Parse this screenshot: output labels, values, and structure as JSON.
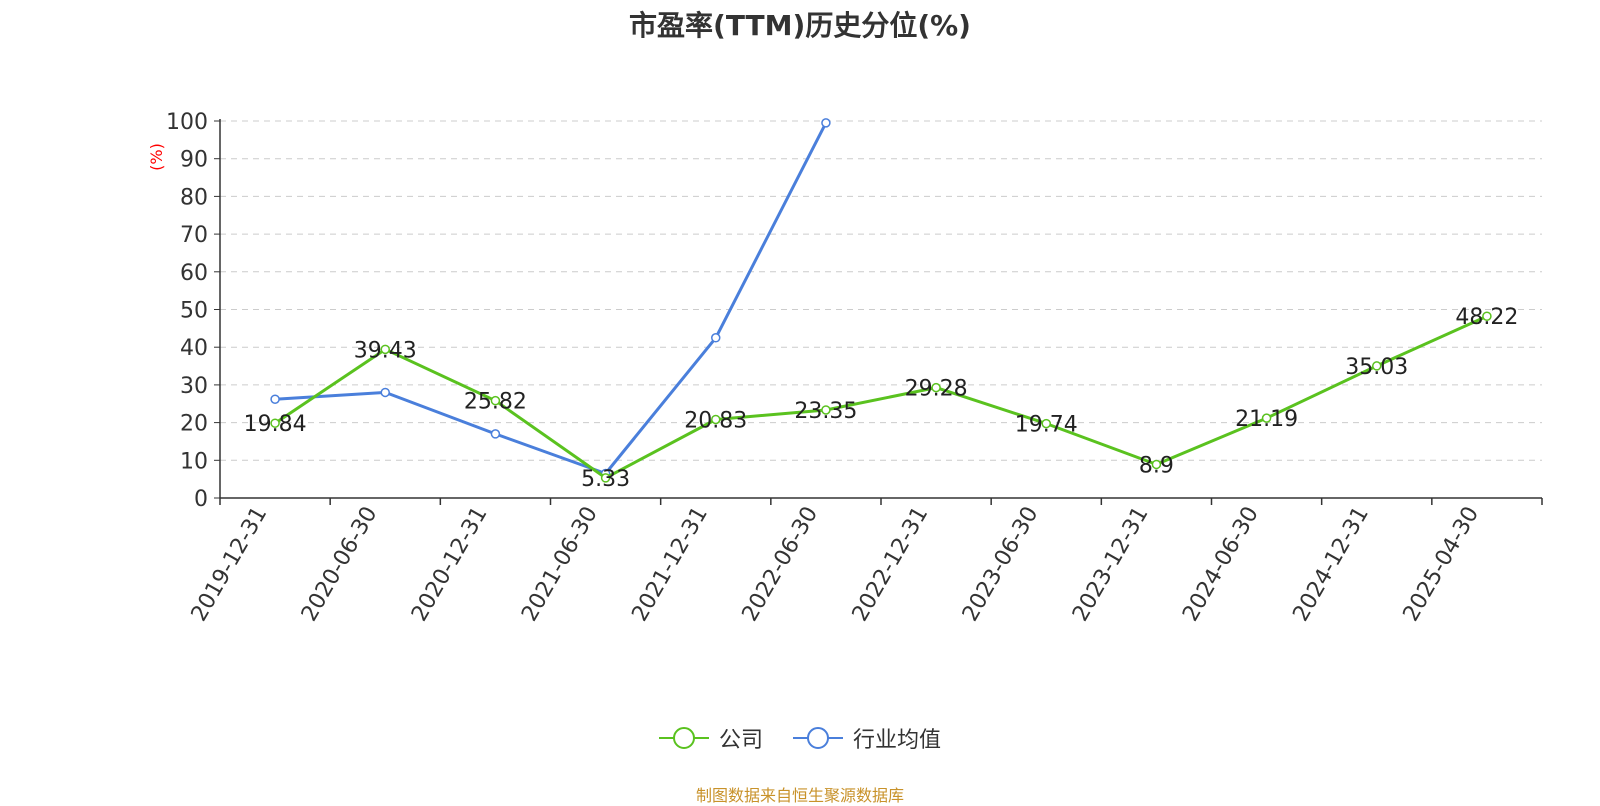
{
  "chart_data": {
    "type": "line",
    "title": "市盈率(TTM)历史分位(%)",
    "ylabel": "(%)",
    "xlabel": "",
    "ylim": [
      0,
      100
    ],
    "yticks": [
      0,
      10,
      20,
      30,
      40,
      50,
      60,
      70,
      80,
      90,
      100
    ],
    "categories": [
      "2019-12-31",
      "2020-06-30",
      "2020-12-31",
      "2021-06-30",
      "2021-12-31",
      "2022-06-30",
      "2022-12-31",
      "2023-06-30",
      "2023-12-31",
      "2024-06-30",
      "2024-12-31",
      "2025-04-30"
    ],
    "grid": true,
    "legend_position": "bottom",
    "series": [
      {
        "name": "公司",
        "color": "#5ac21f",
        "values": [
          19.84,
          39.43,
          25.82,
          5.33,
          20.83,
          23.35,
          29.28,
          19.74,
          8.9,
          21.19,
          35.03,
          48.22
        ],
        "labels": [
          "19.84",
          "39.43",
          "25.82",
          "5.33",
          "20.83",
          "23.35",
          "29.28",
          "19.74",
          "8.9",
          "21.19",
          "35.03",
          "48.22"
        ]
      },
      {
        "name": "行业均值",
        "color": "#4a7fdb",
        "values": [
          26.2,
          28.0,
          17.0,
          6.5,
          42.5,
          99.5,
          null,
          null,
          null,
          null,
          null,
          null
        ]
      }
    ]
  },
  "source_note": "制图数据来自恒生聚源数据库",
  "colors": {
    "axis": "#333333",
    "grid": "#cccccc",
    "ylabel": "#ff0000",
    "source": "#c8922a"
  }
}
